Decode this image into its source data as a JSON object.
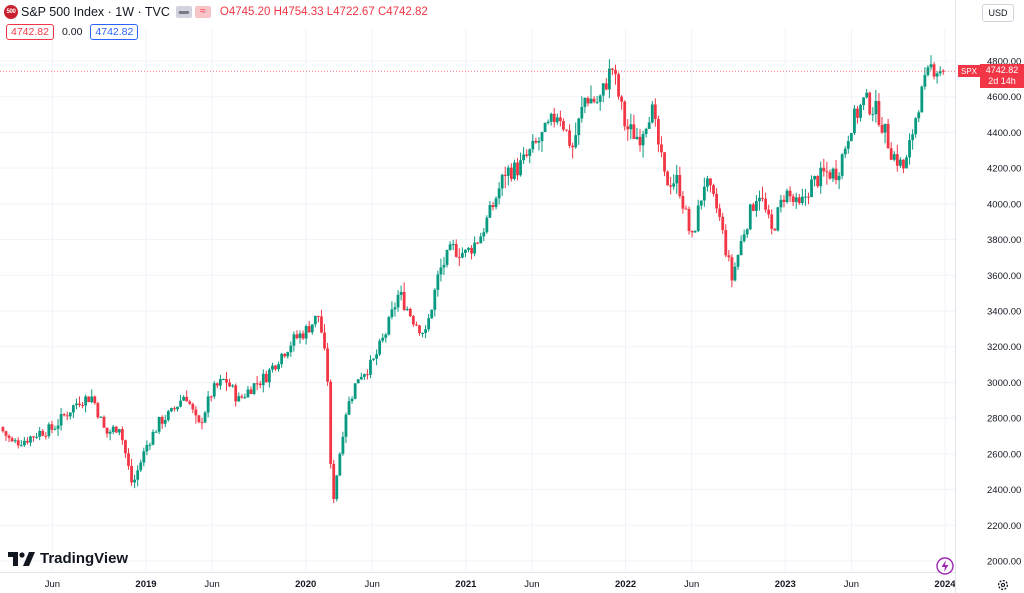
{
  "header": {
    "symbol_badge": "500",
    "title": "S&P 500 Index · 1W · TVC",
    "ohlc": {
      "open_label": "O",
      "open": "4745.20",
      "high_label": "H",
      "high": "4754.33",
      "low_label": "L",
      "low": "4722.67",
      "close_label": "C",
      "close": "4742.82"
    },
    "value_left": "4742.82",
    "value_mid": "0.00",
    "value_right": "4742.82"
  },
  "currency": "USD",
  "price_tag": {
    "symbol": "SPX",
    "price": "4742.82",
    "countdown": "2d 14h"
  },
  "logo_text": "TradingView",
  "colors": {
    "up": "#089981",
    "down": "#f23645",
    "grid": "#f0f3fa",
    "axis_text": "#131722",
    "accent": "#2962ff"
  },
  "icons": {
    "bolt": "lightning-bolt-icon",
    "settings": "gear-icon"
  },
  "chart_data": {
    "type": "candlestick",
    "title": "S&P 500 Index · 1W · TVC",
    "y_axis": {
      "ticks": [
        2000,
        2200,
        2400,
        2600,
        2800,
        3000,
        3200,
        3400,
        3600,
        3800,
        4000,
        4200,
        4400,
        4600,
        4800
      ],
      "ylim": [
        1980,
        4880
      ],
      "position": "right"
    },
    "x_axis": {
      "labels": [
        {
          "label": "Jun",
          "date": "2018-06"
        },
        {
          "label": "2019",
          "date": "2019-01"
        },
        {
          "label": "Jun",
          "date": "2019-06"
        },
        {
          "label": "2020",
          "date": "2020-01"
        },
        {
          "label": "Jun",
          "date": "2020-06"
        },
        {
          "label": "2021",
          "date": "2021-01"
        },
        {
          "label": "Jun",
          "date": "2021-06"
        },
        {
          "label": "2022",
          "date": "2022-01"
        },
        {
          "label": "Jun",
          "date": "2022-06"
        },
        {
          "label": "2023",
          "date": "2023-01"
        },
        {
          "label": "Jun",
          "date": "2023-06"
        },
        {
          "label": "2024",
          "date": "2024-01"
        }
      ],
      "range": [
        "2018-02",
        "2024-01"
      ]
    },
    "grid": true,
    "approx_weekly_close_path": [
      {
        "date": "2018-02",
        "close": 2750
      },
      {
        "date": "2018-03",
        "close": 2660
      },
      {
        "date": "2018-04",
        "close": 2680
      },
      {
        "date": "2018-05",
        "close": 2720
      },
      {
        "date": "2018-06",
        "close": 2740
      },
      {
        "date": "2018-07",
        "close": 2820
      },
      {
        "date": "2018-08",
        "close": 2900
      },
      {
        "date": "2018-09",
        "close": 2920
      },
      {
        "date": "2018-10",
        "close": 2710
      },
      {
        "date": "2018-11",
        "close": 2760
      },
      {
        "date": "2018-12",
        "close": 2420
      },
      {
        "date": "2019-01",
        "close": 2640
      },
      {
        "date": "2019-02",
        "close": 2780
      },
      {
        "date": "2019-03",
        "close": 2830
      },
      {
        "date": "2019-04",
        "close": 2940
      },
      {
        "date": "2019-05",
        "close": 2750
      },
      {
        "date": "2019-06",
        "close": 2950
      },
      {
        "date": "2019-07",
        "close": 3020
      },
      {
        "date": "2019-08",
        "close": 2900
      },
      {
        "date": "2019-09",
        "close": 2980
      },
      {
        "date": "2019-10",
        "close": 3030
      },
      {
        "date": "2019-11",
        "close": 3140
      },
      {
        "date": "2019-12",
        "close": 3230
      },
      {
        "date": "2020-01",
        "close": 3290
      },
      {
        "date": "2020-02",
        "close": 3380
      },
      {
        "date": "2020-02-20",
        "close": 3020
      },
      {
        "date": "2020-03",
        "close": 2300
      },
      {
        "date": "2020-04",
        "close": 2830
      },
      {
        "date": "2020-05",
        "close": 3040
      },
      {
        "date": "2020-06",
        "close": 3100
      },
      {
        "date": "2020-07",
        "close": 3270
      },
      {
        "date": "2020-08",
        "close": 3500
      },
      {
        "date": "2020-09",
        "close": 3360
      },
      {
        "date": "2020-10",
        "close": 3270
      },
      {
        "date": "2020-11",
        "close": 3620
      },
      {
        "date": "2020-12",
        "close": 3750
      },
      {
        "date": "2021-01",
        "close": 3720
      },
      {
        "date": "2021-02",
        "close": 3810
      },
      {
        "date": "2021-03",
        "close": 3970
      },
      {
        "date": "2021-04",
        "close": 4180
      },
      {
        "date": "2021-05",
        "close": 4200
      },
      {
        "date": "2021-06",
        "close": 4300
      },
      {
        "date": "2021-07",
        "close": 4400
      },
      {
        "date": "2021-08",
        "close": 4520
      },
      {
        "date": "2021-09",
        "close": 4310
      },
      {
        "date": "2021-10",
        "close": 4600
      },
      {
        "date": "2021-11",
        "close": 4570
      },
      {
        "date": "2021-12",
        "close": 4770
      },
      {
        "date": "2022-01",
        "close": 4430
      },
      {
        "date": "2022-02",
        "close": 4370
      },
      {
        "date": "2022-03",
        "close": 4540
      },
      {
        "date": "2022-04",
        "close": 4130
      },
      {
        "date": "2022-05",
        "close": 4130
      },
      {
        "date": "2022-06",
        "close": 3790
      },
      {
        "date": "2022-07",
        "close": 4130
      },
      {
        "date": "2022-08",
        "close": 3950
      },
      {
        "date": "2022-09",
        "close": 3580
      },
      {
        "date": "2022-10",
        "close": 3870
      },
      {
        "date": "2022-11",
        "close": 4080
      },
      {
        "date": "2022-12",
        "close": 3840
      },
      {
        "date": "2023-01",
        "close": 4070
      },
      {
        "date": "2023-02",
        "close": 3970
      },
      {
        "date": "2023-03",
        "close": 4110
      },
      {
        "date": "2023-04",
        "close": 4170
      },
      {
        "date": "2023-05",
        "close": 4180
      },
      {
        "date": "2023-06",
        "close": 4450
      },
      {
        "date": "2023-07",
        "close": 4580
      },
      {
        "date": "2023-08",
        "close": 4510
      },
      {
        "date": "2023-09",
        "close": 4290
      },
      {
        "date": "2023-10",
        "close": 4190
      },
      {
        "date": "2023-11",
        "close": 4560
      },
      {
        "date": "2023-12",
        "close": 4770
      },
      {
        "date": "2024-01",
        "close": 4742.82
      }
    ],
    "last": {
      "open": 4745.2,
      "high": 4754.33,
      "low": 4722.67,
      "close": 4742.82
    }
  }
}
